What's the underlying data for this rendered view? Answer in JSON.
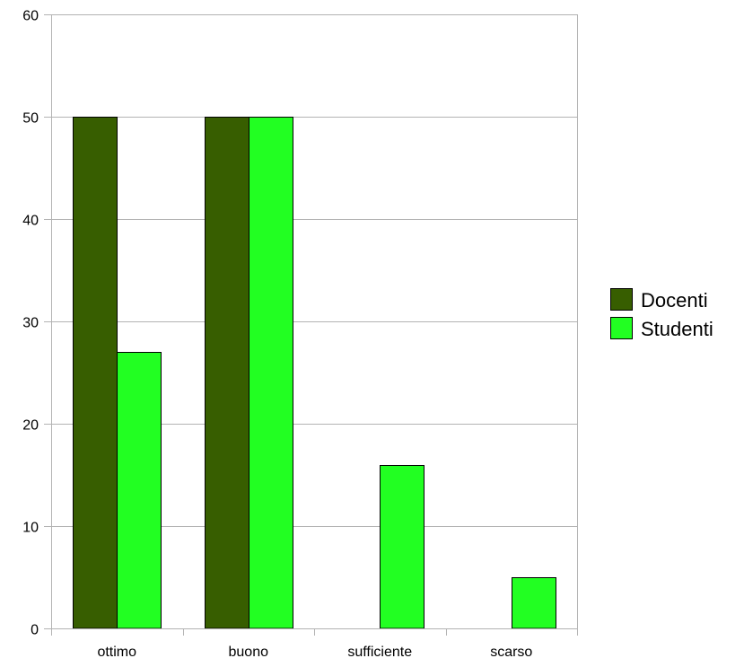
{
  "chart_data": {
    "type": "bar",
    "categories": [
      "ottimo",
      "buono",
      "sufficiente",
      "scarso"
    ],
    "series": [
      {
        "name": "Docenti",
        "values": [
          50,
          50,
          0,
          0
        ],
        "color": "#375e00"
      },
      {
        "name": "Studenti",
        "values": [
          27,
          50,
          16,
          5
        ],
        "color": "#22ff22"
      }
    ],
    "yticks": [
      "0",
      "10",
      "20",
      "30",
      "40",
      "50",
      "60"
    ],
    "ylim": [
      0,
      60
    ],
    "grid": true,
    "legend_position": "right",
    "title": "",
    "xlabel": "",
    "ylabel": ""
  }
}
